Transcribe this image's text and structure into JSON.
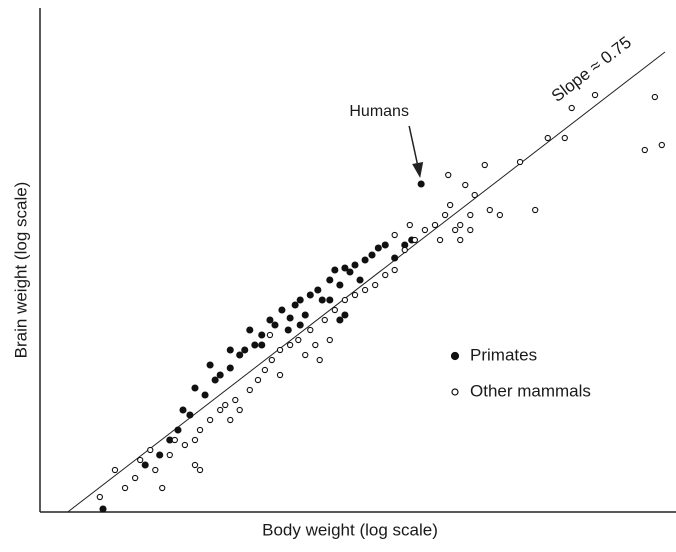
{
  "chart_data": {
    "type": "scatter",
    "x_label": "Body weight (log scale)",
    "y_label": "Brain weight (log scale)",
    "xlim": [
      0,
      100
    ],
    "ylim": [
      0,
      100
    ],
    "series": [
      {
        "name": "Primates",
        "color": "#111111",
        "marker": "filled",
        "x": [
          10.0,
          16.7,
          19.0,
          20.6,
          22.7,
          24.6,
          26.2,
          28.6,
          30.2,
          31.7,
          32.5,
          34.1,
          35.2,
          36.5,
          37.3,
          38.4,
          39.7,
          40.5,
          41.3,
          42.1,
          42.9,
          44.1,
          44.8,
          46.0,
          46.8,
          47.6,
          48.4,
          49.2,
          50.0,
          50.8,
          51.6,
          52.7,
          53.7,
          54.8,
          56.3,
          57.9,
          59.0,
          60.5,
          35.2,
          33.3,
          39.4,
          41.3,
          46.0,
          48.4,
          47.6,
          30.2,
          27.8,
          23.8,
          21.9,
          27.0
        ],
        "values": [
          0.6,
          9.4,
          11.4,
          14.4,
          20.4,
          24.8,
          23.4,
          27.4,
          28.8,
          31.4,
          32.4,
          33.4,
          35.4,
          38.4,
          37.4,
          40.4,
          38.8,
          41.4,
          42.4,
          39.4,
          43.4,
          44.4,
          42.4,
          46.4,
          48.4,
          45.4,
          48.8,
          48.0,
          49.4,
          46.4,
          50.4,
          51.4,
          52.8,
          53.4,
          50.8,
          53.4,
          54.4,
          65.6,
          33.4,
          36.4,
          36.4,
          37.4,
          42.4,
          39.4,
          38.4,
          32.4,
          26.4,
          19.4,
          16.4,
          29.4
        ]
      },
      {
        "name": "Other mammals",
        "color": "#111111",
        "marker": "open",
        "x": [
          9.5,
          11.9,
          13.5,
          15.1,
          15.9,
          17.5,
          18.3,
          19.4,
          20.6,
          21.4,
          23.0,
          24.6,
          25.4,
          27.0,
          28.6,
          29.4,
          31.0,
          31.7,
          33.3,
          34.6,
          35.7,
          36.8,
          38.1,
          39.7,
          41.0,
          42.9,
          43.7,
          44.4,
          45.2,
          46.8,
          48.4,
          50.0,
          51.6,
          53.2,
          54.8,
          56.3,
          57.9,
          59.5,
          61.1,
          62.7,
          64.3,
          65.1,
          65.9,
          66.7,
          68.3,
          69.0,
          70.6,
          71.4,
          73.0,
          76.2,
          78.6,
          80.6,
          83.3,
          84.4,
          88.1,
          96.0,
          97.6,
          98.7,
          64.8,
          67.5,
          24.6,
          25.4,
          30.2,
          36.5,
          42.1,
          46.0,
          38.1,
          66.7,
          68.3,
          63.5,
          56.3,
          58.7
        ],
        "values": [
          3.0,
          8.4,
          4.8,
          6.8,
          10.4,
          12.4,
          8.4,
          4.8,
          11.4,
          14.4,
          13.4,
          9.4,
          16.4,
          18.4,
          20.4,
          21.4,
          22.4,
          20.4,
          24.4,
          26.4,
          28.4,
          30.4,
          32.4,
          33.4,
          34.4,
          36.4,
          33.4,
          30.4,
          38.4,
          40.4,
          42.4,
          43.4,
          44.4,
          45.4,
          47.4,
          48.4,
          52.4,
          54.4,
          56.4,
          57.4,
          59.4,
          61.4,
          56.4,
          54.4,
          59.4,
          63.4,
          69.4,
          60.4,
          59.4,
          70.0,
          60.4,
          74.8,
          74.8,
          80.8,
          83.4,
          72.4,
          83.0,
          73.4,
          67.4,
          65.4,
          14.4,
          8.4,
          18.4,
          35.4,
          31.4,
          34.4,
          27.4,
          57.4,
          56.4,
          54.4,
          55.4,
          57.4
        ]
      }
    ],
    "fit_line": {
      "x": [
        4.4,
        99.2
      ],
      "values": [
        0,
        92
      ],
      "label": "Slope ≈ 0.75"
    },
    "annotation": {
      "text": "Humans",
      "series": 0,
      "index": 37
    }
  }
}
